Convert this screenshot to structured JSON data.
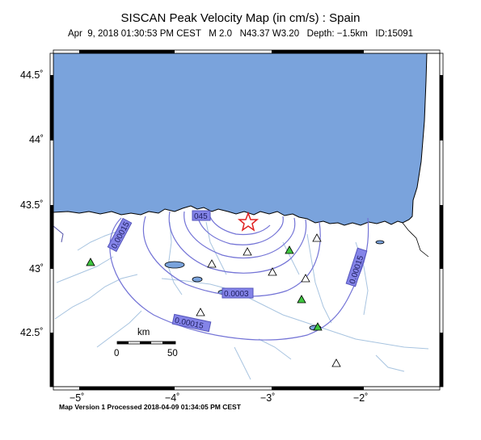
{
  "header": {
    "title": "SISCAN Peak Velocity Map (in cm/s) : Spain",
    "subtitle": "Apr  9, 2018 01:30:53 PM CEST   M 2.0   N43.37 W3.20   Depth: −1.5km   ID:15091"
  },
  "footer": {
    "text": "Map Version 1 Processed 2018-04-09 01:34:05 PM CEST"
  },
  "axes": {
    "x_ticks": [
      "−5˚",
      "−4˚",
      "−3˚",
      "−2˚"
    ],
    "y_ticks": [
      "44.5˚",
      "44˚",
      "43.5˚",
      "43˚",
      "42.5˚"
    ]
  },
  "contours": {
    "label_00015_left": "0.00015",
    "label_00015_bottom": "0.00015",
    "label_00015_right": "0.00015",
    "label_0003": "0.0003",
    "label_045": "045"
  },
  "scale_bar": {
    "unit": "km",
    "start": "0",
    "end": "50"
  },
  "colors": {
    "sea": "#7aa3dc",
    "contour": "#7373d6",
    "label_bg": "#8484e8",
    "river": "#a8c4e0",
    "epicenter": "#e02020",
    "station_green": "#3fc63f"
  }
}
